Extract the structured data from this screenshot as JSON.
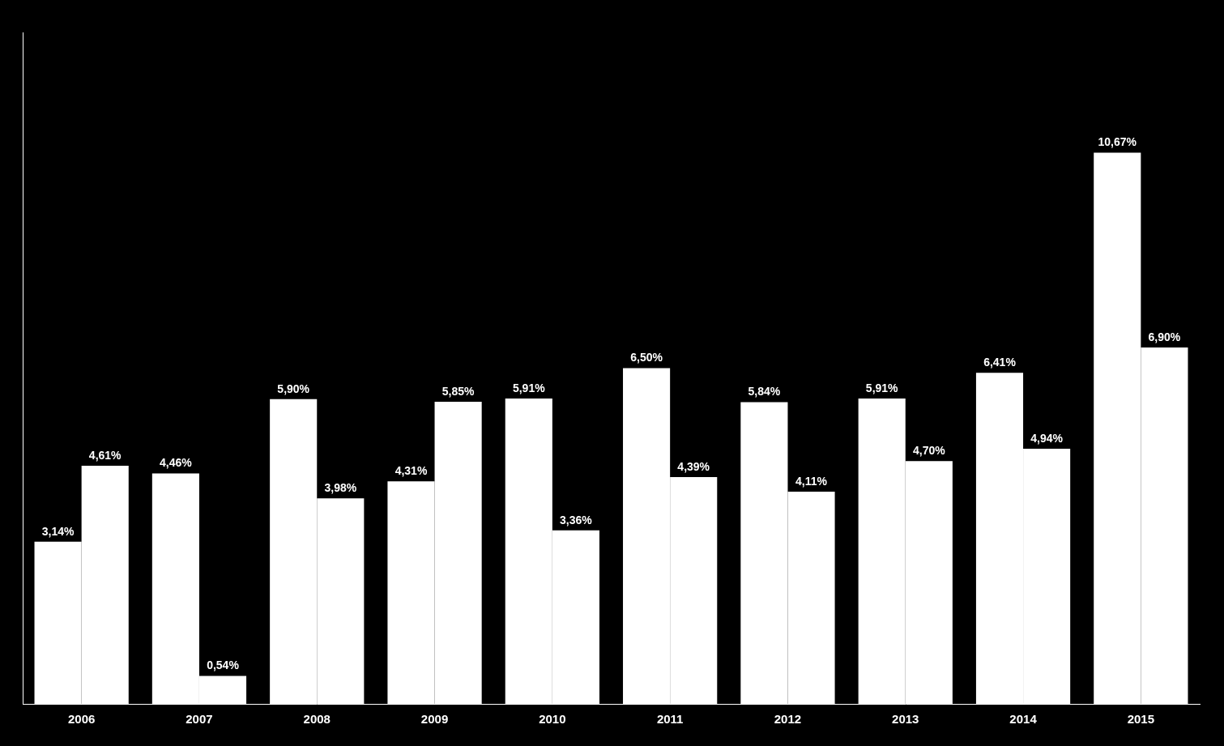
{
  "chart_data": {
    "type": "bar",
    "categories": [
      "2006",
      "2007",
      "2008",
      "2009",
      "2010",
      "2011",
      "2012",
      "2013",
      "2014",
      "2015"
    ],
    "series": [
      {
        "color": "#ffffff",
        "values": [
          3.14,
          4.46,
          5.9,
          4.31,
          5.91,
          6.5,
          5.84,
          5.91,
          6.41,
          10.67
        ],
        "value_labels": [
          "3,14%",
          "4,46%",
          "5,90%",
          "4,31%",
          "5,91%",
          "6,50%",
          "5,84%",
          "5,91%",
          "6,41%",
          "10,67%"
        ]
      },
      {
        "color": "#ffffff",
        "values": [
          4.61,
          0.54,
          3.98,
          5.85,
          3.36,
          4.39,
          4.11,
          4.7,
          4.94,
          6.9
        ],
        "value_labels": [
          "4,61%",
          "0,54%",
          "3,98%",
          "5,85%",
          "3,36%",
          "4,39%",
          "4,11%",
          "4,70%",
          "4,94%",
          "6,90%"
        ]
      }
    ],
    "ylim": [
      0,
      13.0
    ],
    "grid": false,
    "data_labels": true,
    "tick_labels": "x"
  }
}
